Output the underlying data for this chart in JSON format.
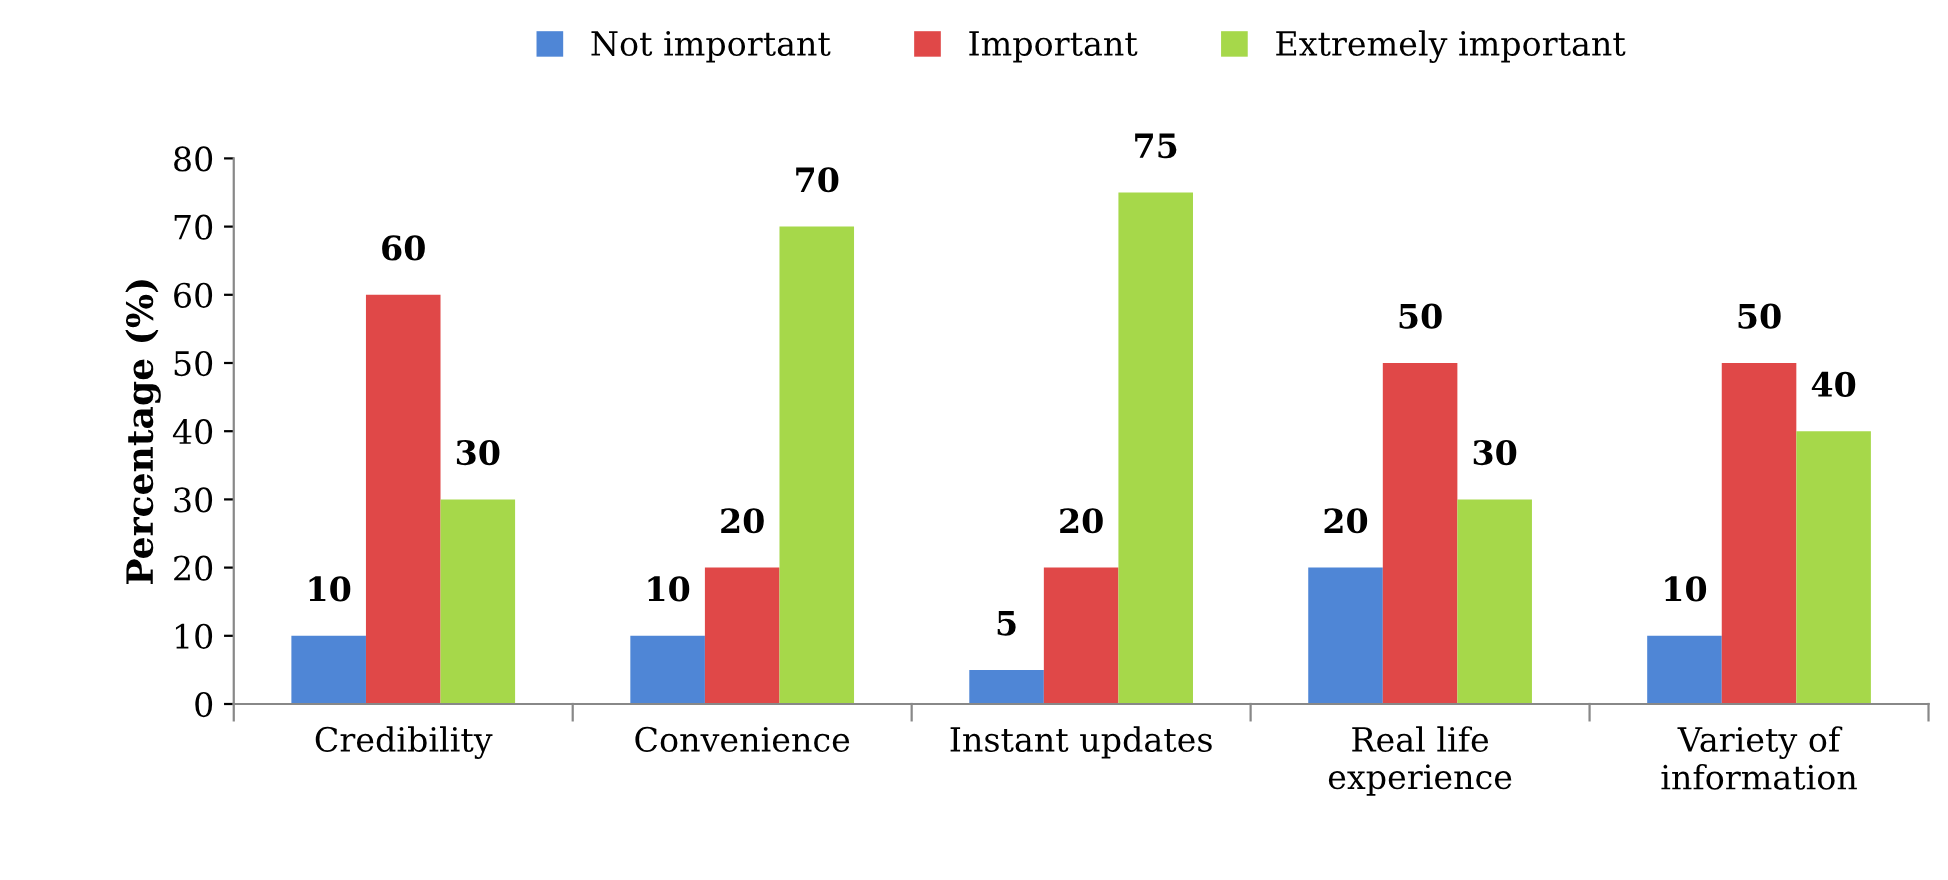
{
  "chart_data": {
    "type": "bar",
    "ylabel": "Percentage (%)",
    "categories": [
      "Credibility",
      "Convenience",
      "Instant updates",
      "Real life\nexperience",
      "Variety of\ninformation"
    ],
    "series": [
      {
        "name": "Not important",
        "color": "#4f86d6",
        "values": [
          10,
          10,
          5,
          20,
          10
        ]
      },
      {
        "name": "Important",
        "color": "#e04848",
        "values": [
          60,
          20,
          20,
          50,
          50
        ]
      },
      {
        "name": "Extremely important",
        "color": "#a6d84a",
        "values": [
          30,
          70,
          75,
          30,
          40
        ]
      }
    ],
    "ylim": [
      0,
      80
    ],
    "yticks": [
      0,
      10,
      20,
      30,
      40,
      50,
      60,
      70,
      80
    ],
    "grid": false,
    "legend": "top",
    "data_labels": true
  }
}
